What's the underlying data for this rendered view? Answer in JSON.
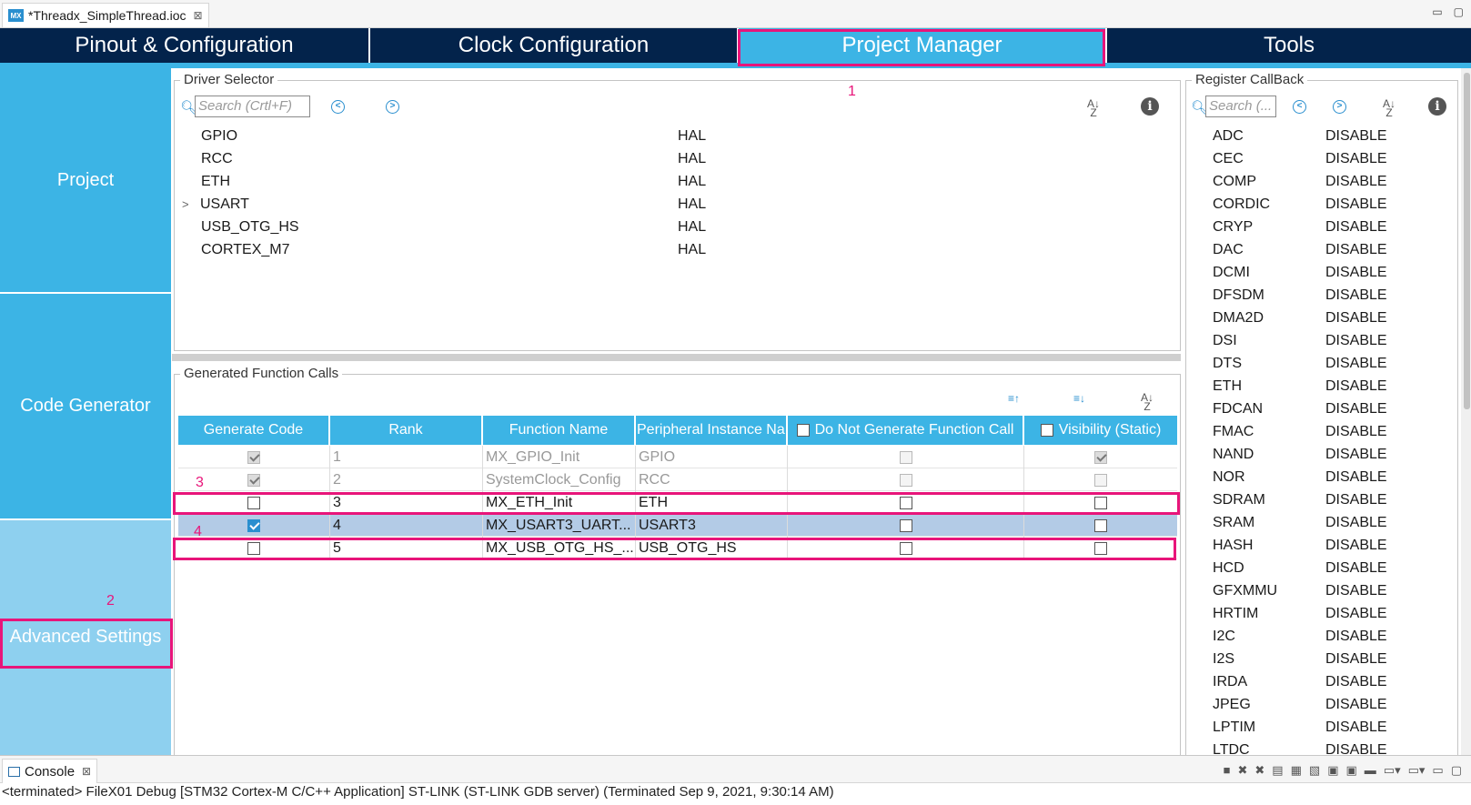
{
  "editor_tab": {
    "icon": "MX",
    "title": "*Threadx_SimpleThread.ioc",
    "close": "⊠"
  },
  "window_controls": {
    "minimize": "▭",
    "maximize": "▢"
  },
  "main_tabs": [
    {
      "label": "Pinout & Configuration",
      "active": false
    },
    {
      "label": "Clock Configuration",
      "active": false
    },
    {
      "label": "Project Manager",
      "active": true
    },
    {
      "label": "Tools",
      "active": false
    }
  ],
  "side_panel": {
    "items": [
      {
        "label": "Project"
      },
      {
        "label": "Code Generator"
      },
      {
        "label": "Advanced Settings"
      }
    ]
  },
  "annotations": {
    "a1": "1",
    "a2": "2",
    "a3": "3",
    "a4": "4"
  },
  "driver_selector": {
    "title": "Driver Selector",
    "search_placeholder": "Search (Crtl+F)",
    "expand_glyph": ">",
    "rows": [
      {
        "name": "GPIO",
        "value": "HAL",
        "expandable": false
      },
      {
        "name": "RCC",
        "value": "HAL",
        "expandable": false
      },
      {
        "name": "ETH",
        "value": "HAL",
        "expandable": false
      },
      {
        "name": "USART",
        "value": "HAL",
        "expandable": true
      },
      {
        "name": "USB_OTG_HS",
        "value": "HAL",
        "expandable": false
      },
      {
        "name": "CORTEX_M7",
        "value": "HAL",
        "expandable": false
      }
    ]
  },
  "generated_calls": {
    "title": "Generated Function Calls",
    "columns": {
      "generate_code": "Generate Code",
      "rank": "Rank",
      "function_name": "Function Name",
      "peripheral": "Peripheral Instance Na...",
      "do_not_generate": "Do Not Generate Function Call",
      "visibility": "Visibility (Static)"
    },
    "rows": [
      {
        "generate": true,
        "rank": "1",
        "function": "MX_GPIO_Init",
        "peripheral": "GPIO",
        "do_not_generate": false,
        "visibility": true,
        "disabled": true,
        "selected": false
      },
      {
        "generate": true,
        "rank": "2",
        "function": "SystemClock_Config",
        "peripheral": "RCC",
        "do_not_generate": false,
        "visibility": false,
        "disabled": true,
        "selected": false
      },
      {
        "generate": false,
        "rank": "3",
        "function": "MX_ETH_Init",
        "peripheral": "ETH",
        "do_not_generate": false,
        "visibility": false,
        "disabled": false,
        "selected": false
      },
      {
        "generate": true,
        "rank": "4",
        "function": "MX_USART3_UART...",
        "peripheral": "USART3",
        "do_not_generate": false,
        "visibility": false,
        "disabled": false,
        "selected": true
      },
      {
        "generate": false,
        "rank": "5",
        "function": "MX_USB_OTG_HS_...",
        "peripheral": "USB_OTG_HS",
        "do_not_generate": false,
        "visibility": false,
        "disabled": false,
        "selected": false
      }
    ]
  },
  "register_callback": {
    "title": "Register CallBack",
    "search_placeholder": "Search (...",
    "rows": [
      {
        "name": "ADC",
        "value": "DISABLE"
      },
      {
        "name": "CEC",
        "value": "DISABLE"
      },
      {
        "name": "COMP",
        "value": "DISABLE"
      },
      {
        "name": "CORDIC",
        "value": "DISABLE"
      },
      {
        "name": "CRYP",
        "value": "DISABLE"
      },
      {
        "name": "DAC",
        "value": "DISABLE"
      },
      {
        "name": "DCMI",
        "value": "DISABLE"
      },
      {
        "name": "DFSDM",
        "value": "DISABLE"
      },
      {
        "name": "DMA2D",
        "value": "DISABLE"
      },
      {
        "name": "DSI",
        "value": "DISABLE"
      },
      {
        "name": "DTS",
        "value": "DISABLE"
      },
      {
        "name": "ETH",
        "value": "DISABLE"
      },
      {
        "name": "FDCAN",
        "value": "DISABLE"
      },
      {
        "name": "FMAC",
        "value": "DISABLE"
      },
      {
        "name": "NAND",
        "value": "DISABLE"
      },
      {
        "name": "NOR",
        "value": "DISABLE"
      },
      {
        "name": "SDRAM",
        "value": "DISABLE"
      },
      {
        "name": "SRAM",
        "value": "DISABLE"
      },
      {
        "name": "HASH",
        "value": "DISABLE"
      },
      {
        "name": "HCD",
        "value": "DISABLE"
      },
      {
        "name": "GFXMMU",
        "value": "DISABLE"
      },
      {
        "name": "HRTIM",
        "value": "DISABLE"
      },
      {
        "name": "I2C",
        "value": "DISABLE"
      },
      {
        "name": "I2S",
        "value": "DISABLE"
      },
      {
        "name": "IRDA",
        "value": "DISABLE"
      },
      {
        "name": "JPEG",
        "value": "DISABLE"
      },
      {
        "name": "LPTIM",
        "value": "DISABLE"
      },
      {
        "name": "LTDC",
        "value": "DISABLE"
      }
    ]
  },
  "console": {
    "tab_label": "Console",
    "close": "⊠",
    "text": "<terminated> FileX01 Debug [STM32 Cortex-M C/C++ Application] ST-LINK (ST-LINK GDB server) (Terminated Sep 9, 2021, 9:30:14 AM)"
  },
  "colors": {
    "nav_dark": "#03234b",
    "accent": "#3cb4e5",
    "side_light": "#8ed0ef",
    "highlight": "#e8157a",
    "selected_row": "#b3cbe6"
  }
}
